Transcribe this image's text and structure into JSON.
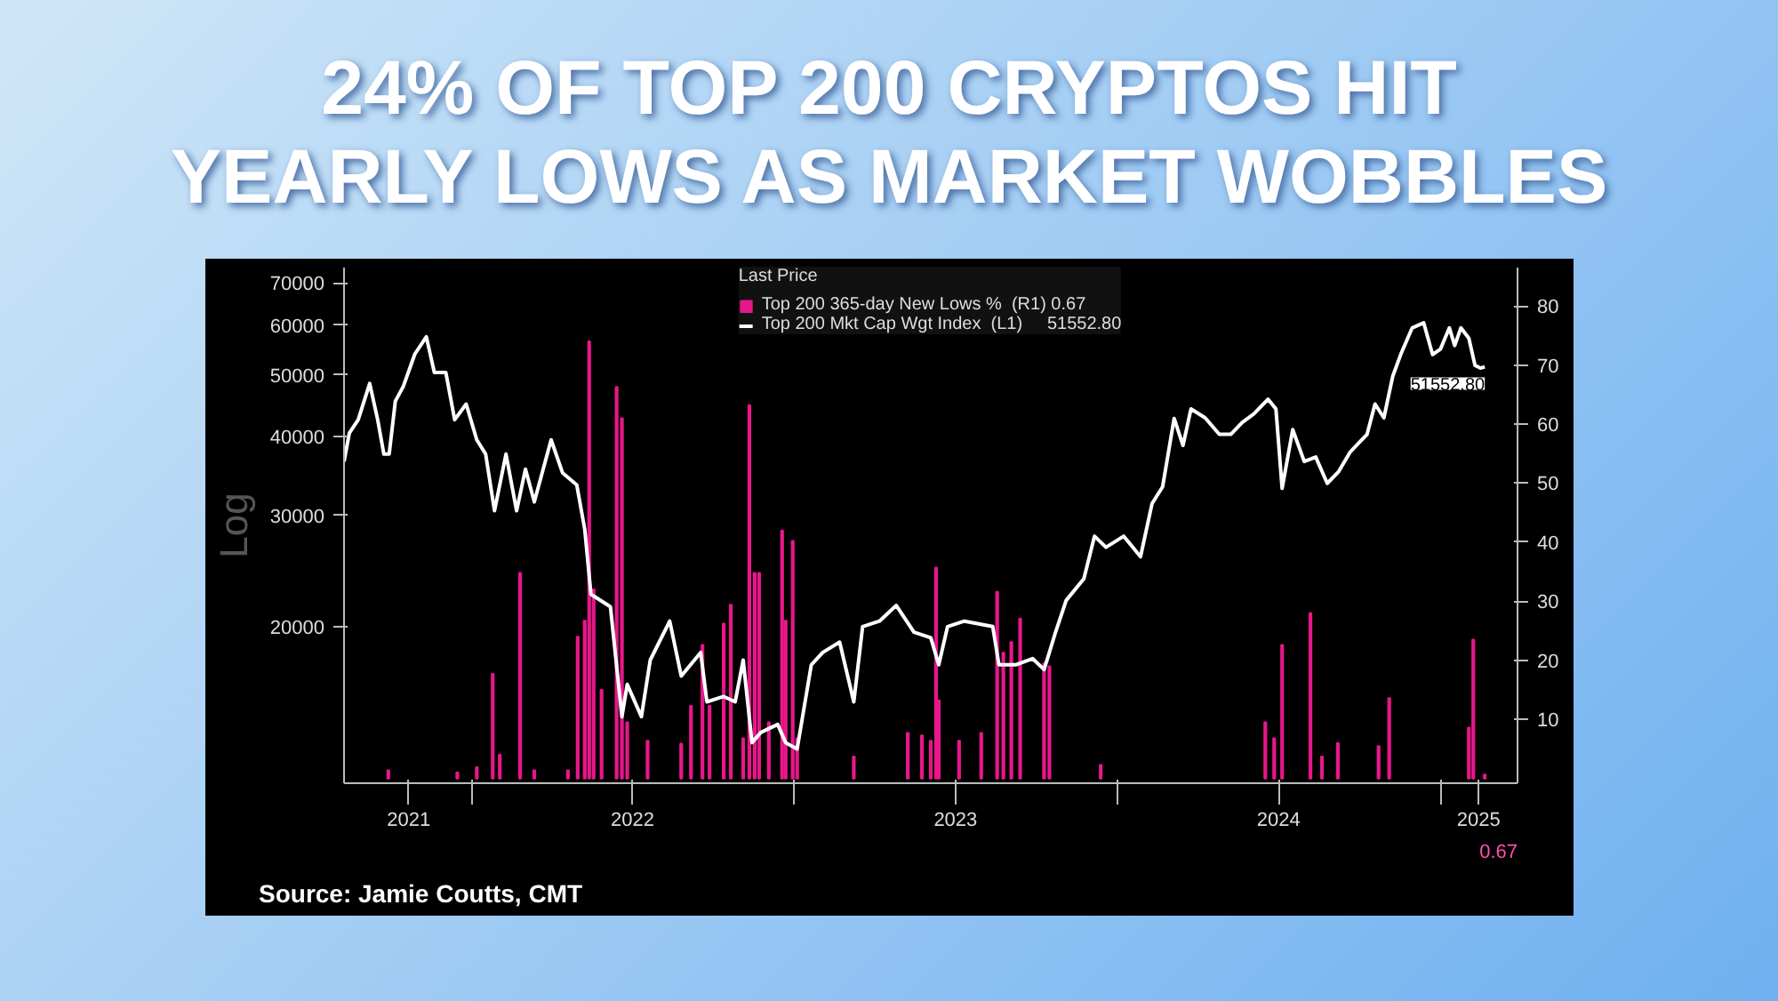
{
  "chart_data": {
    "type": "line",
    "title": "24% OF TOP 200 CRYPTOS HIT YEARLY LOWS AS MARKET WOBBLES",
    "ylabel": "Log",
    "legend_title": "Last Price",
    "legend": "top",
    "grid": false,
    "log": "y",
    "xlim": [
      "2021-08-10",
      "2025-03-28"
    ],
    "xticks": [
      {
        "value": "2021-10-22",
        "label": "2021"
      },
      {
        "value": "2022-01-01",
        "label": null
      },
      {
        "value": "2022-07-02",
        "label": "2022"
      },
      {
        "value": "2023-01-01",
        "label": null
      },
      {
        "value": "2023-07-02",
        "label": "2023"
      },
      {
        "value": "2024-01-01",
        "label": null
      },
      {
        "value": "2024-07-01",
        "label": "2024"
      },
      {
        "value": "2025-01-01",
        "label": null
      },
      {
        "value": "2025-02-12",
        "label": "2025"
      }
    ],
    "ylim": [
      11300,
      74000
    ],
    "yticks": [
      20000,
      30000,
      40000,
      50000,
      60000,
      70000
    ],
    "y2lim": [
      -0.8,
      86.5
    ],
    "y2ticks": [
      10,
      20,
      30,
      40,
      50,
      60,
      70,
      80
    ],
    "series": [
      {
        "name": "Top 200 365-day New Lows %  (R1) 0.67",
        "type": "bar",
        "axis": "y2",
        "color": "#e8178a",
        "x": [
          "2021-09-29",
          "2021-12-16",
          "2022-01-07",
          "2022-01-25",
          "2022-02-02",
          "2022-02-25",
          "2022-03-13",
          "2022-04-20",
          "2022-05-01",
          "2022-05-09",
          "2022-05-14",
          "2022-05-19",
          "2022-05-28",
          "2022-06-14",
          "2022-06-20",
          "2022-06-26",
          "2022-07-19",
          "2022-08-26",
          "2022-09-06",
          "2022-09-19",
          "2022-09-27",
          "2022-10-13",
          "2022-10-21",
          "2022-11-04",
          "2022-11-11",
          "2022-11-17",
          "2022-11-22",
          "2022-12-03",
          "2022-12-18",
          "2022-12-22",
          "2022-12-30",
          "2023-01-04",
          "2023-03-09",
          "2023-05-09",
          "2023-05-25",
          "2023-06-04",
          "2023-06-10",
          "2023-06-13",
          "2023-07-06",
          "2023-07-31",
          "2023-08-18",
          "2023-08-25",
          "2023-09-03",
          "2023-09-13",
          "2023-10-10",
          "2023-10-16",
          "2023-12-13",
          "2024-06-16",
          "2024-06-26",
          "2024-07-05",
          "2024-08-06",
          "2024-08-19",
          "2024-09-06",
          "2024-10-22",
          "2024-11-03",
          "2025-02-01",
          "2025-02-06",
          "2025-02-19"
        ],
        "values": [
          1.4,
          1,
          1.9,
          17.7,
          4,
          34.8,
          1.4,
          1.4,
          24,
          26.7,
          74,
          32,
          15,
          66.3,
          61,
          9.5,
          6.4,
          5.9,
          12.3,
          22.6,
          12.3,
          26.2,
          29.4,
          6.8,
          63.2,
          34.8,
          34.8,
          9.5,
          42,
          26.7,
          40.2,
          6.8,
          3.7,
          7.7,
          7.3,
          6.4,
          35.7,
          13.2,
          6.4,
          7.7,
          31.6,
          21.3,
          23.1,
          27.1,
          19.5,
          19,
          2.3,
          9.5,
          6.8,
          22.6,
          28,
          3.7,
          6,
          5.5,
          13.6,
          8.6,
          23.5,
          0.67
        ]
      },
      {
        "name": "Top 200 Mkt Cap Wgt Index  (L1)     51552.80",
        "color": "#ffffff",
        "x": [
          "2021-08-10",
          "2021-08-16",
          "2021-08-26",
          "2021-09-08",
          "2021-09-17",
          "2021-09-24",
          "2021-09-30",
          "2021-10-07",
          "2021-10-16",
          "2021-10-29",
          "2021-11-11",
          "2021-11-20",
          "2021-12-03",
          "2021-12-13",
          "2021-12-26",
          "2022-01-07",
          "2022-01-17",
          "2022-01-27",
          "2022-02-09",
          "2022-02-21",
          "2022-03-03",
          "2022-03-13",
          "2022-04-01",
          "2022-04-14",
          "2022-04-30",
          "2022-05-09",
          "2022-05-16",
          "2022-06-07",
          "2022-06-20",
          "2022-06-26",
          "2022-07-12",
          "2022-07-22",
          "2022-08-13",
          "2022-08-26",
          "2022-09-17",
          "2022-09-24",
          "2022-10-13",
          "2022-10-26",
          "2022-11-04",
          "2022-11-14",
          "2022-11-24",
          "2022-12-13",
          "2022-12-22",
          "2023-01-04",
          "2023-01-20",
          "2023-02-02",
          "2023-02-21",
          "2023-03-09",
          "2023-03-19",
          "2023-04-07",
          "2023-04-26",
          "2023-05-16",
          "2023-06-04",
          "2023-06-13",
          "2023-06-23",
          "2023-07-12",
          "2023-08-13",
          "2023-08-20",
          "2023-09-08",
          "2023-09-27",
          "2023-10-10",
          "2023-10-16",
          "2023-10-23",
          "2023-11-04",
          "2023-11-24",
          "2023-12-06",
          "2023-12-19",
          "2024-01-08",
          "2024-01-27",
          "2024-02-09",
          "2024-02-21",
          "2024-03-05",
          "2024-03-15",
          "2024-03-24",
          "2024-04-09",
          "2024-04-25",
          "2024-05-08",
          "2024-05-21",
          "2024-06-03",
          "2024-06-19",
          "2024-06-28",
          "2024-07-05",
          "2024-07-17",
          "2024-07-30",
          "2024-08-12",
          "2024-08-25",
          "2024-09-07",
          "2024-09-20",
          "2024-10-09",
          "2024-10-18",
          "2024-10-28",
          "2024-11-07",
          "2024-11-16",
          "2024-11-29",
          "2024-12-12",
          "2024-12-22",
          "2024-12-31",
          "2025-01-10",
          "2025-01-16",
          "2025-01-23",
          "2025-02-01",
          "2025-02-08",
          "2025-02-14",
          "2025-02-19"
        ],
        "values": [
          36500,
          40500,
          42500,
          48500,
          42500,
          37500,
          37500,
          45500,
          48000,
          54000,
          57500,
          50500,
          50500,
          42500,
          45000,
          39500,
          37500,
          30500,
          37500,
          30500,
          35500,
          31500,
          39500,
          35000,
          33500,
          28500,
          22500,
          21500,
          14400,
          16200,
          14400,
          17700,
          20400,
          16700,
          18200,
          15200,
          15500,
          15200,
          17700,
          13100,
          13600,
          14000,
          13100,
          12800,
          17400,
          18200,
          18900,
          15200,
          20000,
          20400,
          21600,
          19600,
          19200,
          17400,
          20000,
          20400,
          20000,
          17400,
          17400,
          17800,
          17100,
          18200,
          19600,
          22000,
          23800,
          27800,
          26700,
          27800,
          25800,
          31300,
          33300,
          42700,
          38700,
          44200,
          42800,
          40300,
          40300,
          42100,
          43400,
          45800,
          44200,
          33100,
          41000,
          36500,
          37100,
          33700,
          35200,
          37800,
          40300,
          45000,
          42800,
          49800,
          53900,
          59400,
          60500,
          53900,
          55000,
          59400,
          55700,
          59400,
          57200,
          51800,
          51300,
          51552.8
        ]
      }
    ],
    "annotations": [
      {
        "text": "51552.80",
        "x": "2025-02-19",
        "y": 51552.8
      },
      "0.67",
      "Source: Jamie Coutts, CMT"
    ]
  }
}
